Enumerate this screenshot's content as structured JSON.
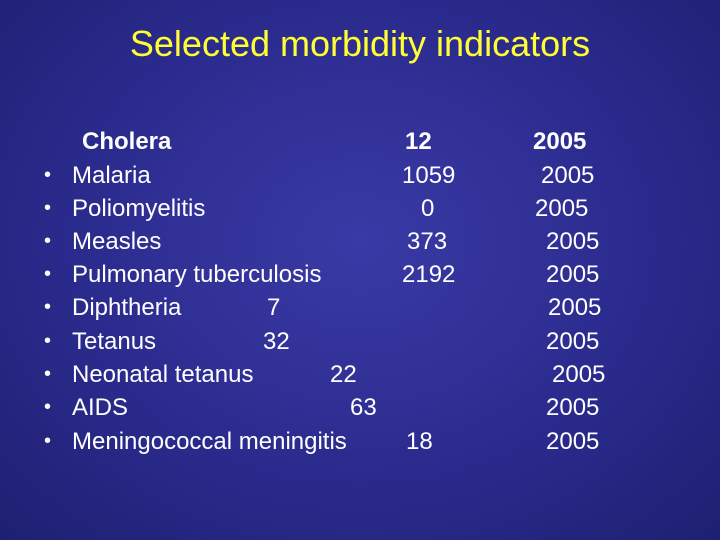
{
  "title": "Selected morbidity indicators",
  "bullet_glyph": "•",
  "rows": [
    {
      "name": "Cholera",
      "value": "12",
      "year": "2005",
      "bold": true,
      "bullet": false
    },
    {
      "name": "Malaria",
      "value": "1059",
      "year": "2005",
      "bold": false,
      "bullet": true
    },
    {
      "name": "Poliomyelitis",
      "value": "0",
      "year": "2005",
      "bold": false,
      "bullet": true
    },
    {
      "name": "Measles",
      "value": "373",
      "year": "2005",
      "bold": false,
      "bullet": true
    },
    {
      "name": "Pulmonary tuberculosis",
      "value": "2192",
      "year": "2005",
      "bold": false,
      "bullet": true
    },
    {
      "name": "Diphtheria",
      "value": "7",
      "year": "2005",
      "bold": false,
      "bullet": true
    },
    {
      "name": "Tetanus",
      "value": "32",
      "year": "2005",
      "bold": false,
      "bullet": true
    },
    {
      "name": "Neonatal tetanus",
      "value": "22",
      "year": "2005",
      "bold": false,
      "bullet": true
    },
    {
      "name": "AIDS",
      "value": "63",
      "year": "2005",
      "bold": false,
      "bullet": true
    },
    {
      "name": "Meningococcal meningitis",
      "value": "18",
      "year": "2005",
      "bold": false,
      "bullet": true
    }
  ],
  "colors": {
    "title": "#ffff33",
    "text": "#ffffff",
    "background": "#2b2b8e"
  }
}
